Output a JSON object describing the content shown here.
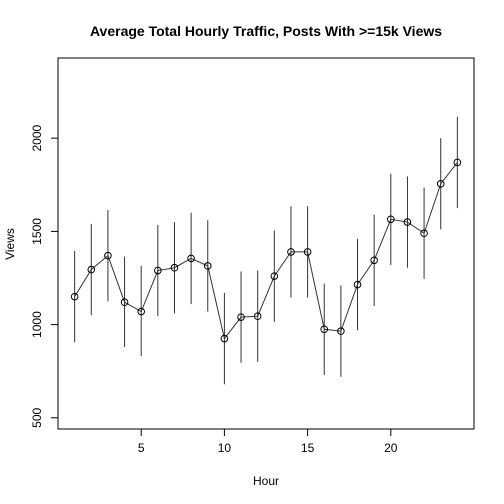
{
  "chart_data": {
    "type": "line",
    "title": "Average Total Hourly Traffic, Posts With >=15k Views",
    "xlabel": "Hour",
    "ylabel": "Views",
    "xlim": [
      0,
      25
    ],
    "ylim": [
      440,
      2430
    ],
    "x_ticks": [
      5,
      10,
      15,
      20
    ],
    "y_ticks": [
      500,
      1000,
      1500,
      2000
    ],
    "grid": false,
    "legend": "none",
    "line_color": "#333333",
    "series": [
      {
        "x": [
          1,
          2,
          3,
          4,
          5,
          6,
          7,
          8,
          9,
          10,
          11,
          12,
          13,
          14,
          15,
          16,
          17,
          18,
          19,
          20,
          21,
          22,
          23,
          24
        ],
        "y": [
          1150,
          1295,
          1370,
          1120,
          1070,
          1290,
          1305,
          1355,
          1315,
          925,
          1040,
          1045,
          1260,
          1390,
          1390,
          975,
          965,
          1215,
          1345,
          1565,
          1550,
          1490,
          1755,
          1870
        ],
        "y_low": [
          905,
          1050,
          1125,
          880,
          830,
          1045,
          1060,
          1110,
          1070,
          680,
          795,
          800,
          1015,
          1145,
          1145,
          730,
          720,
          970,
          1100,
          1320,
          1305,
          1245,
          1510,
          1625
        ],
        "y_high": [
          1395,
          1540,
          1615,
          1365,
          1315,
          1535,
          1550,
          1600,
          1560,
          1170,
          1285,
          1290,
          1505,
          1635,
          1635,
          1220,
          1210,
          1460,
          1590,
          1810,
          1795,
          1735,
          2000,
          2115
        ]
      }
    ]
  }
}
